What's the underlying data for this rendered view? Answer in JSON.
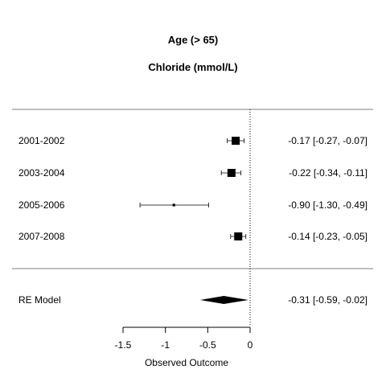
{
  "chart_data": {
    "type": "forest",
    "title": "Age (> 65)",
    "subtitle": "Chloride (mmol/L)",
    "xlabel": "Observed Outcome",
    "xlim": [
      -1.5,
      0
    ],
    "x_ticks": [
      -1.5,
      -1,
      -0.5,
      0
    ],
    "x_tick_labels": [
      "-1.5",
      "-1",
      "-0.5",
      "0"
    ],
    "reference_line": 0,
    "studies": [
      {
        "label": "2001-2002",
        "estimate": -0.17,
        "ci_low": -0.27,
        "ci_high": -0.07,
        "text": "-0.17 [-0.27, -0.07]",
        "weight": 1.0
      },
      {
        "label": "2003-2004",
        "estimate": -0.22,
        "ci_low": -0.34,
        "ci_high": -0.11,
        "text": "-0.22 [-0.34, -0.11]",
        "weight": 1.0
      },
      {
        "label": "2005-2006",
        "estimate": -0.9,
        "ci_low": -1.3,
        "ci_high": -0.49,
        "text": "-0.90 [-1.30, -0.49]",
        "weight": 0.15
      },
      {
        "label": "2007-2008",
        "estimate": -0.14,
        "ci_low": -0.23,
        "ci_high": -0.05,
        "text": "-0.14 [-0.23, -0.05]",
        "weight": 1.0
      }
    ],
    "summary": {
      "label": "RE Model",
      "estimate": -0.31,
      "ci_low": -0.59,
      "ci_high": -0.02,
      "text": "-0.31 [-0.59, -0.02]"
    }
  }
}
